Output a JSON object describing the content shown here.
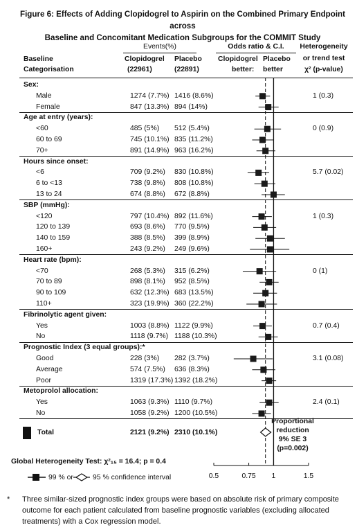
{
  "title_line1": "Figure 6: Effects of Adding Clopidogrel to Aspirin on the Combined Primary Endpoint across",
  "title_line2": "Baseline and Concomitant Medication Subgroups for the COMMIT Study",
  "header": {
    "events": "Events(%)",
    "baseline": "Baseline",
    "categorisation": "Categorisation",
    "clopidogrel": "Clopidogrel",
    "clopidogrel_n": "(22961)",
    "placebo": "Placebo",
    "placebo_n": "(22891)",
    "odds_ratio": "Odds ratio & C.I.",
    "clop_better_1": "Clopidogrel",
    "clop_better_2": "better:",
    "placebo_better_1": "Placebo",
    "placebo_better_2": "better",
    "het_1": "Heterogeneity",
    "het_2": "or trend test",
    "het_3": "χ² (p-value)"
  },
  "rows": [
    {
      "kind": "group",
      "label": "Sex:"
    },
    {
      "kind": "item",
      "label": "Male",
      "clop": "1274 (7.7%)",
      "plac": "1416 (8.6%)",
      "het": "1 (0.3)"
    },
    {
      "kind": "item",
      "label": "Female",
      "clop": "847 (13.3%)",
      "plac": "894 (14%)",
      "het": ""
    },
    {
      "kind": "group",
      "label": "Age at entry (years):"
    },
    {
      "kind": "item",
      "label": "<60",
      "clop": "485 (5%)",
      "plac": "512 (5.4%)",
      "het": "0 (0.9)"
    },
    {
      "kind": "item",
      "label": "60 to 69",
      "clop": "745 (10.1%)",
      "plac": "835 (11.2%)",
      "het": ""
    },
    {
      "kind": "item",
      "label": "70+",
      "clop": "891 (14.9%)",
      "plac": "963 (16.2%)",
      "het": ""
    },
    {
      "kind": "group",
      "label": "Hours since onset:"
    },
    {
      "kind": "item",
      "label": "<6",
      "clop": "709 (9.2%)",
      "plac": "830 (10.8%)",
      "het": "5.7 (0.02)"
    },
    {
      "kind": "item",
      "label": "6 to <13",
      "clop": "738 (9.8%)",
      "plac": "808 (10.8%)",
      "het": ""
    },
    {
      "kind": "item",
      "label": "13 to 24",
      "clop": "674 (8.8%)",
      "plac": "672 (8.8%)",
      "het": ""
    },
    {
      "kind": "group",
      "label": "SBP (mmHg):"
    },
    {
      "kind": "item",
      "label": "<120",
      "clop": "797 (10.4%)",
      "plac": "892 (11.6%)",
      "het": "1 (0.3)"
    },
    {
      "kind": "item",
      "label": "120 to 139",
      "clop": "693 (8.6%)",
      "plac": "770 (9.5%)",
      "het": ""
    },
    {
      "kind": "item",
      "label": "140 to 159",
      "clop": "388 (8.5%)",
      "plac": "399 (8.9%)",
      "het": ""
    },
    {
      "kind": "item",
      "label": "160+",
      "clop": "243 (9.2%)",
      "plac": "249 (9.6%)",
      "het": ""
    },
    {
      "kind": "group",
      "label": "Heart rate (bpm):"
    },
    {
      "kind": "item",
      "label": "<70",
      "clop": "268 (5.3%)",
      "plac": "315 (6.2%)",
      "het": "0 (1)"
    },
    {
      "kind": "item",
      "label": "70 to 89",
      "clop": "898 (8.1%)",
      "plac": "952 (8.5%)",
      "het": ""
    },
    {
      "kind": "item",
      "label": "90 to 109",
      "clop": "632 (12.3%)",
      "plac": "683 (13.5%)",
      "het": ""
    },
    {
      "kind": "item",
      "label": "110+",
      "clop": "323 (19.9%)",
      "plac": "360 (22.2%)",
      "het": ""
    },
    {
      "kind": "group",
      "label": "Fibrinolytic agent given:"
    },
    {
      "kind": "item",
      "label": "Yes",
      "clop": "1003 (8.8%)",
      "plac": "1122 (9.9%)",
      "het": "0.7 (0.4)"
    },
    {
      "kind": "item",
      "label": "No",
      "clop": "1118 (9.7%)",
      "plac": "1188 (10.3%)",
      "het": ""
    },
    {
      "kind": "group",
      "label": "Prognostic Index (3 equal groups):*"
    },
    {
      "kind": "item",
      "label": "Good",
      "clop": "228 (3%)",
      "plac": "282 (3.7%)",
      "het": "3.1 (0.08)"
    },
    {
      "kind": "item",
      "label": "Average",
      "clop": "574 (7.5%)",
      "plac": "636 (8.3%)",
      "het": ""
    },
    {
      "kind": "item",
      "label": "Poor",
      "clop": "1319 (17.3%)",
      "plac": "1392 (18.2%)",
      "het": ""
    },
    {
      "kind": "group",
      "label": "Metoprolol allocation:"
    },
    {
      "kind": "item",
      "label": "Yes",
      "clop": "1063 (9.3%)",
      "plac": "1110 (9.7%)",
      "het": "2.4 (0.1)"
    },
    {
      "kind": "item",
      "label": "No",
      "clop": "1058 (9.2%)",
      "plac": "1200 (10.5%)",
      "het": ""
    }
  ],
  "total": {
    "label": "Total",
    "clop": "2121 (9.2%)",
    "plac": "2310 (10.1%)"
  },
  "proportional": {
    "l1": "Proportional",
    "l2": "reduction",
    "l3": "9% SE 3",
    "l4": "(p=0.002)"
  },
  "global_het": "Global Heterogeneity Test:  χ²₁₅ = 16.4;  p = 0.4",
  "legend": {
    "ci99": "99 % or",
    "ci95": "95 % confidence interval"
  },
  "footnote_mark": "*",
  "footnote": "Three similar-sized prognostic index groups were based on absolute risk of primary composite outcome for each patient calculated from baseline prognostic variables (excluding allocated treatments) with a Cox regression model.",
  "chart_data": {
    "type": "forest",
    "x_axis": {
      "ticks": [
        0.5,
        0.75,
        1,
        1.5
      ],
      "tick_labels": [
        "0.5",
        "0.75",
        "1",
        "1.5"
      ],
      "range": [
        0.5,
        1.5
      ]
    },
    "reference_line": 1,
    "overall_dashed_line": 0.91,
    "estimates": [
      {
        "subgroup": "Male",
        "or": 0.88,
        "lo": 0.81,
        "hi": 0.96
      },
      {
        "subgroup": "Female",
        "or": 0.94,
        "lo": 0.84,
        "hi": 1.06
      },
      {
        "subgroup": "<60",
        "or": 0.93,
        "lo": 0.8,
        "hi": 1.09
      },
      {
        "subgroup": "60 to 69",
        "or": 0.88,
        "lo": 0.78,
        "hi": 1.0
      },
      {
        "subgroup": "70+",
        "or": 0.91,
        "lo": 0.82,
        "hi": 1.02
      },
      {
        "subgroup": "<6",
        "or": 0.84,
        "lo": 0.74,
        "hi": 0.95
      },
      {
        "subgroup": "6 to <13",
        "or": 0.9,
        "lo": 0.8,
        "hi": 1.02
      },
      {
        "subgroup": "13 to 24",
        "or": 1.0,
        "lo": 0.87,
        "hi": 1.14
      },
      {
        "subgroup": "<120",
        "or": 0.87,
        "lo": 0.78,
        "hi": 0.98
      },
      {
        "subgroup": "120 to 139",
        "or": 0.9,
        "lo": 0.79,
        "hi": 1.03
      },
      {
        "subgroup": "140 to 159",
        "or": 0.96,
        "lo": 0.81,
        "hi": 1.14
      },
      {
        "subgroup": "160+",
        "or": 0.96,
        "lo": 0.76,
        "hi": 1.2
      },
      {
        "subgroup": "<70",
        "or": 0.85,
        "lo": 0.7,
        "hi": 1.03
      },
      {
        "subgroup": "70 to 89",
        "or": 0.95,
        "lo": 0.85,
        "hi": 1.06
      },
      {
        "subgroup": "90 to 109",
        "or": 0.91,
        "lo": 0.79,
        "hi": 1.04
      },
      {
        "subgroup": "110+",
        "or": 0.87,
        "lo": 0.73,
        "hi": 1.04
      },
      {
        "subgroup": "Fibrinolytic Yes",
        "or": 0.88,
        "lo": 0.79,
        "hi": 0.98
      },
      {
        "subgroup": "Fibrinolytic No",
        "or": 0.94,
        "lo": 0.84,
        "hi": 1.05
      },
      {
        "subgroup": "Good",
        "or": 0.79,
        "lo": 0.63,
        "hi": 0.99
      },
      {
        "subgroup": "Average",
        "or": 0.89,
        "lo": 0.78,
        "hi": 1.02
      },
      {
        "subgroup": "Poor",
        "or": 0.95,
        "lo": 0.87,
        "hi": 1.03
      },
      {
        "subgroup": "Metoprolol Yes",
        "or": 0.95,
        "lo": 0.85,
        "hi": 1.06
      },
      {
        "subgroup": "Metoprolol No",
        "or": 0.87,
        "lo": 0.78,
        "hi": 0.97
      },
      {
        "subgroup": "Total",
        "or": 0.91,
        "lo": 0.86,
        "hi": 0.97
      }
    ],
    "colors": {
      "ink": "#111111",
      "box": "#1a1a1a"
    }
  }
}
